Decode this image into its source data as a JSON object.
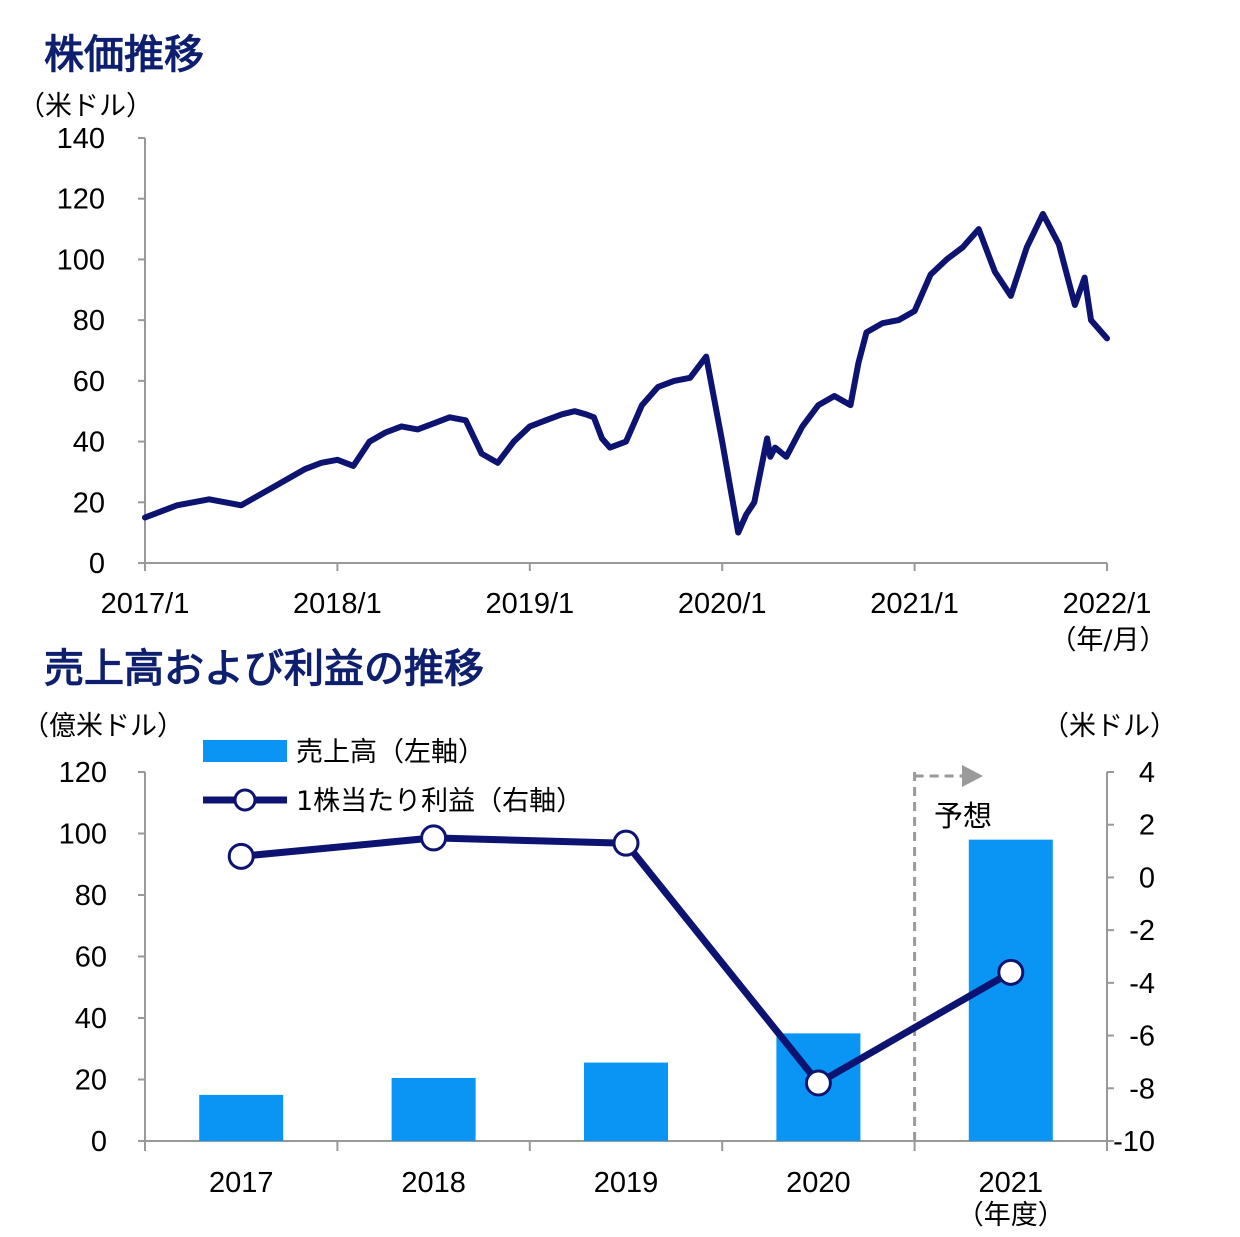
{
  "chart_data": [
    {
      "type": "line",
      "title": "株価推移",
      "yunit": "（米ドル）",
      "xunit": "（年/月）",
      "ylim": [
        0,
        140
      ],
      "yticks": [
        "0",
        "20",
        "40",
        "60",
        "80",
        "100",
        "120",
        "140"
      ],
      "xticks": [
        "2017/1",
        "2018/1",
        "2019/1",
        "2020/1",
        "2021/1",
        "2022/1"
      ],
      "line_color": "#0d1370",
      "x_months": [
        0,
        1,
        2,
        3,
        4,
        5,
        6,
        7,
        8,
        9,
        10,
        11,
        12,
        13,
        14,
        15,
        16,
        17,
        18,
        19,
        20,
        21,
        22,
        23,
        24,
        25,
        26,
        26.8,
        27.5,
        28,
        28.5,
        29,
        30,
        31,
        32,
        33,
        34,
        35,
        36,
        37,
        37.5,
        38,
        38.8,
        39,
        39.3,
        40,
        41,
        42,
        43,
        44,
        44.5,
        45,
        46,
        47,
        48,
        49,
        50,
        51,
        52,
        53,
        54,
        55,
        56,
        57,
        58,
        58.6,
        59,
        60
      ],
      "values": [
        15,
        17,
        19,
        20,
        21,
        20,
        19,
        22,
        25,
        28,
        31,
        33,
        34,
        32,
        40,
        43,
        45,
        44,
        46,
        48,
        47,
        36,
        33,
        40,
        45,
        47,
        49,
        50,
        49,
        48,
        41,
        38,
        40,
        52,
        58,
        60,
        61,
        68,
        40,
        10,
        16,
        20,
        41,
        35,
        38,
        35,
        45,
        52,
        55,
        52,
        66,
        76,
        79,
        80,
        83,
        95,
        100,
        104,
        110,
        96,
        88,
        104,
        115,
        105,
        85,
        94,
        80,
        74
      ]
    },
    {
      "type": "bar",
      "title": "売上高および利益の推移",
      "categories": [
        "2017",
        "2018",
        "2019",
        "2020",
        "2021"
      ],
      "xunit": "（年度）",
      "y1unit": "（億米ドル）",
      "y2unit": "（米ドル）",
      "y1lim": [
        0,
        120
      ],
      "y2lim": [
        -10,
        4
      ],
      "y1ticks": [
        "0",
        "20",
        "40",
        "60",
        "80",
        "100",
        "120"
      ],
      "y2ticks": [
        "-10",
        "-8",
        "-6",
        "-4",
        "-2",
        "0",
        "2",
        "4"
      ],
      "forecast_label": "予想",
      "series": [
        {
          "name": "売上高（左軸）",
          "kind": "bar",
          "axis": "left",
          "color": "#0a95f5",
          "values": [
            15,
            20.5,
            25.5,
            35,
            98
          ]
        },
        {
          "name": "1株当たり利益（右軸）",
          "kind": "line",
          "axis": "right",
          "color": "#0d1370",
          "values": [
            0.8,
            1.5,
            1.3,
            -7.8,
            -3.6
          ]
        }
      ]
    }
  ]
}
